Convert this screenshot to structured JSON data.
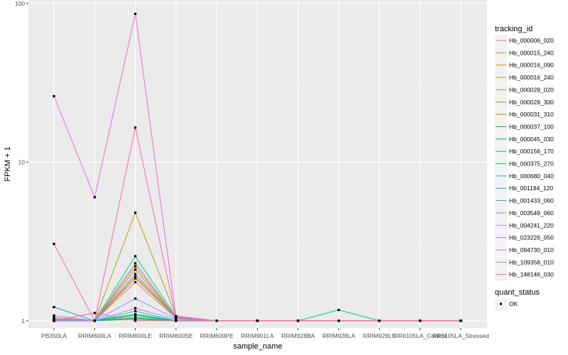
{
  "chart_data": {
    "type": "line",
    "title": "",
    "xlabel": "sample_name",
    "ylabel": "FPKM + 1",
    "y_scale": "log10",
    "ylim": [
      0.9,
      105
    ],
    "y_ticks": [
      1,
      10,
      100
    ],
    "y_tick_labels": [
      "1",
      "10",
      "100"
    ],
    "grid": true,
    "categories": [
      "PB350LA",
      "RRIM600LA",
      "RRIM600LE",
      "RRIM600SE",
      "RRIM600PE",
      "RRIM901LA",
      "RRIM928BA",
      "RRIM928LA",
      "RRIM928LE",
      "RRII105LA_Control",
      "RRII105LA_Stressed"
    ],
    "series": [
      {
        "name": "Hb_000006_020",
        "color": "#F8766D",
        "values": [
          1.02,
          1.0,
          1.9,
          1.05,
          1.0,
          1.0,
          1.0,
          1.0,
          1.0,
          1.0,
          1.0
        ]
      },
      {
        "name": "Hb_000015_240",
        "color": "#EC8239",
        "values": [
          1.01,
          1.0,
          1.75,
          1.04,
          1.0,
          1.0,
          1.0,
          1.0,
          1.0,
          1.0,
          1.0
        ]
      },
      {
        "name": "Hb_000016_090",
        "color": "#DB8E00",
        "values": [
          1.0,
          1.0,
          2.1,
          1.05,
          1.0,
          1.0,
          1.0,
          1.0,
          1.0,
          1.0,
          1.0
        ]
      },
      {
        "name": "Hb_000016_240",
        "color": "#C79800",
        "values": [
          1.03,
          1.0,
          1.85,
          1.05,
          1.0,
          1.0,
          1.0,
          1.0,
          1.0,
          1.0,
          1.0
        ]
      },
      {
        "name": "Hb_000028_020",
        "color": "#AFA100",
        "values": [
          1.0,
          1.0,
          4.8,
          1.07,
          1.0,
          1.0,
          1.0,
          1.0,
          1.0,
          1.0,
          1.0
        ]
      },
      {
        "name": "Hb_000028_300",
        "color": "#96A900",
        "values": [
          1.02,
          1.0,
          2.3,
          1.05,
          1.0,
          1.0,
          1.0,
          1.0,
          1.0,
          1.0,
          1.0
        ]
      },
      {
        "name": "Hb_000031_310",
        "color": "#72B000",
        "values": [
          1.0,
          1.0,
          1.05,
          1.0,
          1.0,
          1.0,
          1.0,
          1.0,
          1.0,
          1.0,
          1.0
        ]
      },
      {
        "name": "Hb_000037_100",
        "color": "#00B81F",
        "values": [
          1.0,
          1.0,
          1.02,
          1.0,
          1.0,
          1.0,
          1.0,
          1.0,
          1.0,
          1.0,
          1.0
        ]
      },
      {
        "name": "Hb_000045_030",
        "color": "#00BC59",
        "values": [
          1.0,
          1.0,
          1.1,
          1.0,
          1.0,
          1.0,
          1.0,
          1.0,
          1.0,
          1.0,
          1.0
        ]
      },
      {
        "name": "Hb_000156_170",
        "color": "#00BF7D",
        "values": [
          1.22,
          1.0,
          1.08,
          1.0,
          1.0,
          1.0,
          1.0,
          1.17,
          1.0,
          1.0,
          1.0
        ]
      },
      {
        "name": "Hb_000375_270",
        "color": "#00C0AB",
        "values": [
          1.0,
          1.0,
          2.55,
          1.06,
          1.0,
          1.0,
          1.0,
          1.0,
          1.0,
          1.0,
          1.0
        ]
      },
      {
        "name": "Hb_000680_040",
        "color": "#00BCD3",
        "values": [
          1.0,
          1.0,
          1.15,
          1.0,
          1.0,
          1.0,
          1.0,
          1.0,
          1.0,
          1.0,
          1.0
        ]
      },
      {
        "name": "Hb_001184_120",
        "color": "#00B4EF",
        "values": [
          1.0,
          1.0,
          1.04,
          1.0,
          1.0,
          1.0,
          1.0,
          1.0,
          1.0,
          1.0,
          1.0
        ]
      },
      {
        "name": "Hb_001433_060",
        "color": "#35A2FF",
        "values": [
          1.01,
          1.0,
          1.97,
          1.05,
          1.0,
          1.0,
          1.0,
          1.0,
          1.0,
          1.0,
          1.0
        ]
      },
      {
        "name": "Hb_003549_060",
        "color": "#8B93FF",
        "values": [
          1.05,
          1.0,
          1.38,
          1.03,
          1.0,
          1.0,
          1.0,
          1.0,
          1.0,
          1.0,
          1.0
        ]
      },
      {
        "name": "Hb_004241_220",
        "color": "#C77CFF",
        "values": [
          1.08,
          1.0,
          1.2,
          1.02,
          1.0,
          1.0,
          1.0,
          1.0,
          1.0,
          1.0,
          1.0
        ]
      },
      {
        "name": "Hb_023226_050",
        "color": "#E76BF3",
        "values": [
          1.0,
          1.0,
          2.2,
          1.05,
          1.0,
          1.0,
          1.0,
          1.0,
          1.0,
          1.0,
          1.0
        ]
      },
      {
        "name": "Hb_094730_010",
        "color": "#FA62DB",
        "values": [
          26.0,
          6.0,
          86.0,
          1.06,
          1.0,
          1.0,
          1.0,
          1.0,
          1.0,
          1.0,
          1.0
        ]
      },
      {
        "name": "Hb_109358_010",
        "color": "#FF62BC",
        "values": [
          3.05,
          1.0,
          16.5,
          1.05,
          1.0,
          1.0,
          1.0,
          1.0,
          1.0,
          1.0,
          1.0
        ]
      },
      {
        "name": "Hb_148146_030",
        "color": "#FF6C90",
        "values": [
          1.0,
          1.12,
          1.0,
          1.0,
          1.0,
          1.0,
          1.0,
          1.0,
          1.0,
          1.0,
          1.0
        ]
      }
    ],
    "legend": {
      "title": "tracking_id",
      "position": "right"
    },
    "legend2": {
      "title": "quant_status",
      "entries": [
        "OK"
      ]
    }
  }
}
